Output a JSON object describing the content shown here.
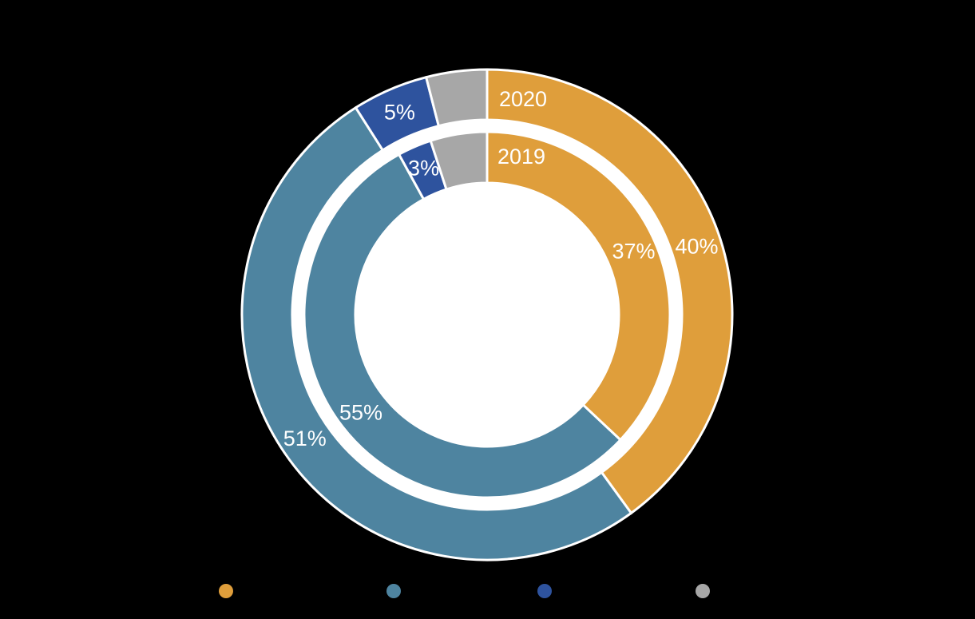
{
  "chart_data": {
    "type": "donut",
    "direction": "clockwise",
    "start_angle_deg": 0,
    "rings": [
      {
        "name": "2020",
        "position": "outer",
        "values": [
          40,
          51,
          5,
          4
        ],
        "labels": [
          "40%",
          "51%",
          "5%",
          ""
        ]
      },
      {
        "name": "2019",
        "position": "inner",
        "values": [
          37,
          55,
          3,
          5
        ],
        "labels": [
          "37%",
          "55%",
          "3%",
          ""
        ]
      }
    ],
    "segment_colors": [
      "#DF9E3B",
      "#4E84A0",
      "#2E539E",
      "#A7A7A7"
    ],
    "separator_color": "#FFFFFF",
    "hole_color": "#FFFFFF",
    "label_text_color": "#FFFFFF",
    "background_color": "#000000",
    "legend": {
      "position": "bottom",
      "labels_visible": false,
      "dot_colors": [
        "#DF9E3B",
        "#4E84A0",
        "#2E539E",
        "#A7A7A7"
      ]
    }
  }
}
